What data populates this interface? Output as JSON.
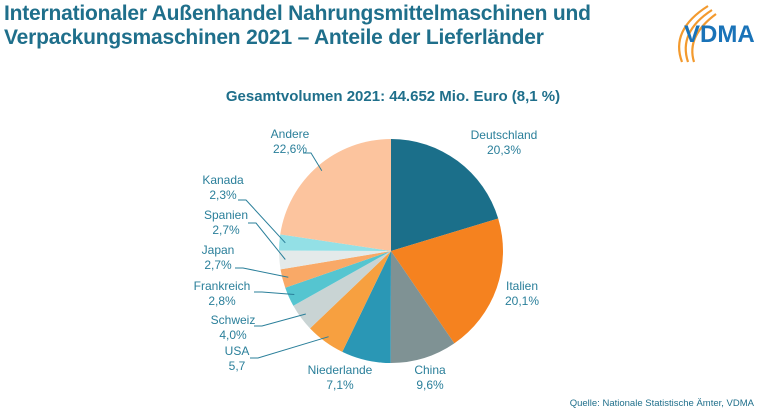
{
  "header": {
    "title_line1": "Internationaler Außenhandel Nahrungsmittelmaschinen und",
    "title_line2": "Verpackungsmaschinen 2021 – Anteile der Lieferländer",
    "logo_text": "VDMA"
  },
  "footer": {
    "source": "Quelle: Nationale Statistische Ämter, VDMA"
  },
  "chart_data": {
    "type": "pie",
    "title": "Gesamtvolumen 2021: 44.652 Mio. Euro (8,1 %)",
    "start": "12 o'clock",
    "direction": "clockwise",
    "slices": [
      {
        "name": "Deutschland",
        "value": 20.3,
        "label": "20,3%",
        "color": "#1b6f8a"
      },
      {
        "name": "Italien",
        "value": 20.1,
        "label": "20,1%",
        "color": "#f5821f"
      },
      {
        "name": "China",
        "value": 9.6,
        "label": "9,6%",
        "color": "#7f9294"
      },
      {
        "name": "Niederlande",
        "value": 7.1,
        "label": "7,1%",
        "color": "#2a97b5"
      },
      {
        "name": "USA",
        "value": 5.7,
        "label": "5,7",
        "color": "#f7a040"
      },
      {
        "name": "Schweiz",
        "value": 4.0,
        "label": "4,0%",
        "color": "#c9d4d4"
      },
      {
        "name": "Frankreich",
        "value": 2.8,
        "label": "2,8%",
        "color": "#55c5d0"
      },
      {
        "name": "Japan",
        "value": 2.7,
        "label": "2,7%",
        "color": "#f9a967"
      },
      {
        "name": "Spanien",
        "value": 2.7,
        "label": "2,7%",
        "color": "#e4eaea"
      },
      {
        "name": "Kanada",
        "value": 2.3,
        "label": "2,3%",
        "color": "#93e0e6"
      },
      {
        "name": "Andere",
        "value": 22.6,
        "label": "22,6%",
        "color": "#fcc49e"
      }
    ],
    "label_color": "#2a7f9a",
    "title_color": "#1f6f8b"
  }
}
